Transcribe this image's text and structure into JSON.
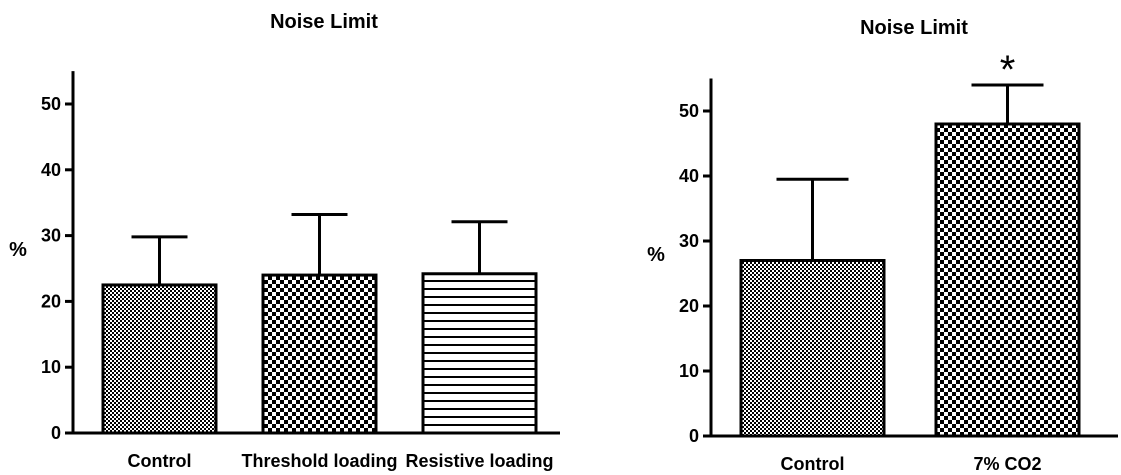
{
  "chart_data": [
    {
      "type": "bar",
      "title": "Noise Limit",
      "ylabel": "%",
      "xlabel": "",
      "ylim": [
        0,
        55
      ],
      "yticks": [
        0,
        10,
        20,
        30,
        40,
        50
      ],
      "grid": false,
      "categories": [
        "Control",
        "Threshold loading",
        "Resistive loading"
      ],
      "values": [
        22.5,
        24,
        24.2
      ],
      "error_upper": [
        7.3,
        9.2,
        7.9
      ],
      "patterns": [
        "fine-checker",
        "checker",
        "horizontal-stripes"
      ],
      "significance": [
        "",
        "",
        ""
      ]
    },
    {
      "type": "bar",
      "title": "Noise Limit",
      "ylabel": "%",
      "xlabel": "",
      "ylim": [
        0,
        55
      ],
      "yticks": [
        0,
        10,
        20,
        30,
        40,
        50
      ],
      "grid": false,
      "categories": [
        "Control",
        "7% CO2"
      ],
      "values": [
        27,
        48
      ],
      "error_upper": [
        12.5,
        6
      ],
      "patterns": [
        "fine-checker",
        "checker"
      ],
      "significance": [
        "",
        "*"
      ]
    }
  ]
}
